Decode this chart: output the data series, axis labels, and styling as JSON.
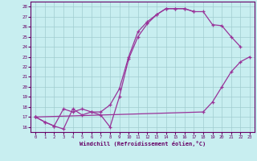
{
  "title": "",
  "xlabel": "Windchill (Refroidissement éolien,°C)",
  "ylabel": "",
  "bg_color": "#c8eef0",
  "line_color": "#993399",
  "grid_color": "#a0ccd0",
  "spine_color": "#660066",
  "xlim": [
    -0.5,
    23.5
  ],
  "ylim": [
    15.5,
    28.5
  ],
  "yticks": [
    16,
    17,
    18,
    19,
    20,
    21,
    22,
    23,
    24,
    25,
    26,
    27,
    28
  ],
  "xticks": [
    0,
    1,
    2,
    3,
    4,
    5,
    6,
    7,
    8,
    9,
    10,
    11,
    12,
    13,
    14,
    15,
    16,
    17,
    18,
    19,
    20,
    21,
    22,
    23
  ],
  "line1_x": [
    0,
    1,
    2,
    3,
    4,
    5,
    6,
    7,
    8,
    9,
    10,
    11,
    12,
    13,
    14,
    15,
    16,
    17,
    18,
    19,
    20,
    21,
    22
  ],
  "line1_y": [
    17.0,
    16.5,
    16.1,
    15.8,
    17.8,
    17.2,
    17.5,
    17.2,
    16.0,
    19.0,
    22.8,
    25.0,
    26.3,
    27.2,
    27.8,
    27.8,
    27.8,
    27.5,
    27.5,
    26.2,
    26.1,
    25.0,
    24.0
  ],
  "line2_x": [
    0,
    1,
    2,
    3,
    4,
    5,
    6,
    7,
    8,
    9,
    10,
    11,
    12,
    13,
    14,
    15,
    16,
    17
  ],
  "line2_y": [
    17.0,
    16.5,
    16.1,
    17.8,
    17.5,
    17.8,
    17.5,
    17.5,
    18.2,
    19.8,
    23.0,
    25.5,
    26.5,
    27.2,
    27.8,
    27.8,
    27.8,
    27.5
  ],
  "line3_x": [
    0,
    18,
    19,
    20,
    21,
    22,
    23
  ],
  "line3_y": [
    17.0,
    17.5,
    18.5,
    20.0,
    21.5,
    22.5,
    23.0
  ]
}
